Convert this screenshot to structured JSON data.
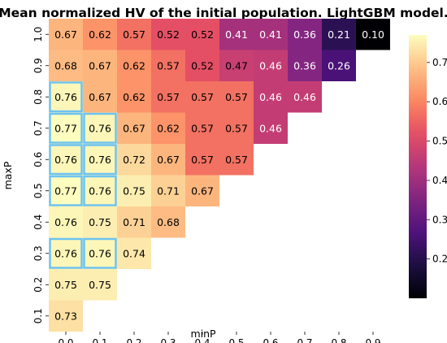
{
  "chart_data": {
    "type": "heatmap",
    "title": "Mean normalized HV of the initial population. LightGBM model.",
    "xlabel": "minP",
    "ylabel": "maxP",
    "x_categories": [
      "0.0",
      "0.1",
      "0.2",
      "0.3",
      "0.4",
      "0.5",
      "0.6",
      "0.7",
      "0.8",
      "0.9"
    ],
    "y_categories": [
      "1.0",
      "0.9",
      "0.8",
      "0.7",
      "0.6",
      "0.5",
      "0.4",
      "0.3",
      "0.2",
      "0.1"
    ],
    "values": [
      [
        0.67,
        0.62,
        0.57,
        0.52,
        0.52,
        0.41,
        0.41,
        0.36,
        0.21,
        0.1
      ],
      [
        0.68,
        0.67,
        0.62,
        0.57,
        0.52,
        0.47,
        0.46,
        0.36,
        0.26,
        null
      ],
      [
        0.76,
        0.67,
        0.62,
        0.57,
        0.57,
        0.57,
        0.46,
        0.46,
        null,
        null
      ],
      [
        0.77,
        0.76,
        0.67,
        0.62,
        0.57,
        0.57,
        0.46,
        null,
        null,
        null
      ],
      [
        0.76,
        0.76,
        0.72,
        0.67,
        0.57,
        0.57,
        null,
        null,
        null,
        null
      ],
      [
        0.77,
        0.76,
        0.75,
        0.71,
        0.67,
        null,
        null,
        null,
        null,
        null
      ],
      [
        0.76,
        0.75,
        0.71,
        0.68,
        null,
        null,
        null,
        null,
        null,
        null
      ],
      [
        0.76,
        0.76,
        0.74,
        null,
        null,
        null,
        null,
        null,
        null,
        null
      ],
      [
        0.75,
        0.75,
        null,
        null,
        null,
        null,
        null,
        null,
        null,
        null
      ],
      [
        0.73,
        null,
        null,
        null,
        null,
        null,
        null,
        null,
        null,
        null
      ]
    ],
    "highlighted_cells": [
      [
        2,
        0
      ],
      [
        3,
        0
      ],
      [
        3,
        1
      ],
      [
        4,
        0
      ],
      [
        4,
        1
      ],
      [
        5,
        0
      ],
      [
        5,
        1
      ],
      [
        7,
        0
      ],
      [
        7,
        1
      ]
    ],
    "highlight_color": "#6ec3f0",
    "colormap": "magma",
    "colorbar": {
      "range": [
        0.1,
        0.77
      ],
      "ticks": [
        "0.2",
        "0.3",
        "0.4",
        "0.5",
        "0.6",
        "0.7"
      ]
    },
    "grid": false,
    "legend": "colorbar-right"
  }
}
